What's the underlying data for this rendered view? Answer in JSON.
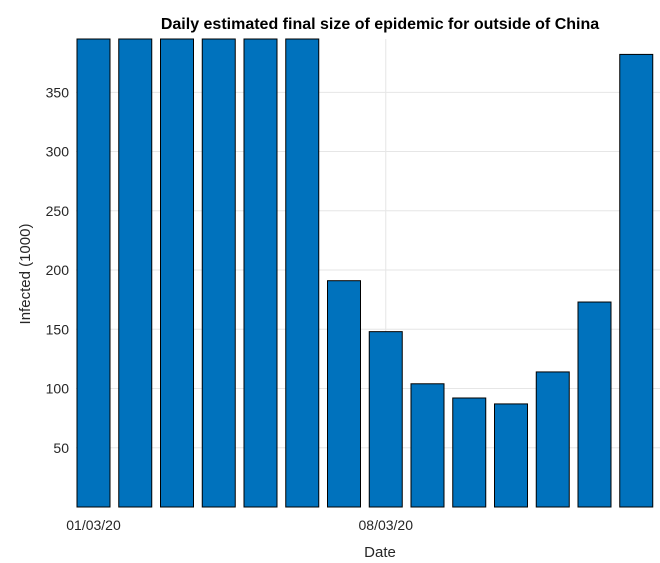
{
  "chart_data": {
    "type": "bar",
    "title": "Daily estimated final size of epidemic for outside of China",
    "xlabel": "Date",
    "ylabel": "Infected (1000)",
    "ylim": [
      0,
      395
    ],
    "yticks": [
      50,
      100,
      150,
      200,
      250,
      300,
      350
    ],
    "xticks": [
      {
        "label": "01/03/20",
        "index": 0
      },
      {
        "label": "08/03/20",
        "index": 7
      }
    ],
    "values": [
      395,
      395,
      395,
      395,
      395,
      395,
      191,
      148,
      104,
      92,
      87,
      114,
      173,
      382
    ],
    "bar_color": "#0072BD",
    "grid": true
  }
}
